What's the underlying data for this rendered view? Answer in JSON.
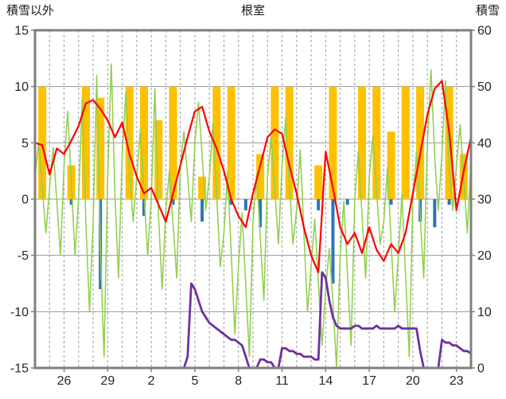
{
  "header": {
    "left_axis_title": "積雪以外",
    "title": "根室",
    "right_axis_title": "積雪"
  },
  "chart_data": {
    "type": "line",
    "title": "根室",
    "left_axis": {
      "label": "積雪以外",
      "min": -15,
      "max": 15,
      "ticks": [
        15,
        10,
        5,
        0,
        -5,
        -10,
        -15
      ]
    },
    "right_axis": {
      "label": "積雪",
      "min": 0,
      "max": 60,
      "ticks": [
        60,
        50,
        40,
        30,
        20,
        10,
        0
      ]
    },
    "x_axis": {
      "total_days": 30,
      "tick_days": [
        2,
        5,
        8,
        11,
        14,
        17,
        20,
        23,
        26,
        29
      ],
      "tick_labels": [
        "26",
        "29",
        "2",
        "5",
        "8",
        "11",
        "14",
        "17",
        "20",
        "23"
      ],
      "grid": "daily-dashed",
      "legend": "none"
    },
    "style": {
      "border_color": "#7f7f7f",
      "grid_color": "#9a9a9a",
      "background": "#ffffff",
      "tick_label_color": "#262626"
    },
    "series": {
      "orange_bars": {
        "type": "bar",
        "axis": "left",
        "direction": "up",
        "color": "#FFC000",
        "values": [
          10,
          0,
          3,
          10,
          9,
          0,
          10,
          10,
          7,
          10,
          0,
          2,
          10,
          10,
          0,
          4,
          10,
          10,
          0,
          3,
          10,
          0,
          10,
          10,
          6,
          10,
          10,
          0,
          10,
          4
        ]
      },
      "blue_bars": {
        "type": "bar",
        "axis": "left",
        "direction": "down",
        "color": "#2E75B6",
        "values": [
          0,
          0,
          0.5,
          0,
          8,
          0,
          0,
          1.5,
          0,
          0.5,
          0,
          2,
          0,
          0.5,
          1,
          2.5,
          0,
          0,
          0,
          1,
          7.5,
          0.5,
          0,
          0,
          0.5,
          0,
          2,
          2.5,
          0.5,
          0
        ]
      },
      "green_line": {
        "type": "line",
        "axis": "left",
        "color": "#92D050",
        "dx_days": 0.25,
        "values": [
          2,
          5,
          1,
          -3,
          1,
          4.6,
          -0.2,
          -5,
          3,
          7.8,
          1.4,
          -5,
          0,
          9,
          -2,
          -10,
          -2,
          11,
          -4.4,
          -14,
          2,
          12,
          0.2,
          -7,
          4,
          9.5,
          2.8,
          -2,
          2,
          6.2,
          0.6,
          -5,
          0,
          9.8,
          -1.6,
          -8,
          -1,
          2.6,
          -2.2,
          -7,
          3,
          6,
          2,
          -2,
          5,
          8.6,
          3.8,
          -1,
          2,
          6.8,
          0.4,
          -6,
          -3,
          2.4,
          -4.8,
          -12,
          -6,
          -1.2,
          -7.6,
          -14,
          -2,
          2.2,
          -3.4,
          -9,
          2,
          5.6,
          0.8,
          -4,
          3,
          7.2,
          1.6,
          -4,
          -1,
          4.4,
          -2.8,
          -10,
          -6,
          -1.8,
          -7.4,
          -13,
          -8,
          -4.4,
          -9.2,
          -15,
          -5,
          -0.2,
          -6.6,
          -13,
          0,
          4.2,
          -1.4,
          -7,
          2,
          5.6,
          0.8,
          -4,
          -2,
          2.8,
          -3.6,
          -10,
          -5,
          0.4,
          -6.8,
          -14,
          0,
          4.2,
          -1.4,
          -7,
          5,
          11.5,
          3.8,
          -1,
          4,
          10.5,
          3,
          -1,
          3,
          6.6,
          1.8,
          -3,
          3.5
        ]
      },
      "red_line": {
        "type": "line",
        "axis": "left",
        "color": "#FF0000",
        "dx_days": 0.5,
        "values": [
          5.0,
          4.8,
          2.2,
          4.5,
          4.0,
          5.2,
          6.5,
          8.5,
          8.8,
          8.0,
          7.0,
          5.5,
          6.8,
          4.0,
          2.0,
          0.5,
          1.0,
          -0.5,
          -2.0,
          0.5,
          3.0,
          5.5,
          7.8,
          8.2,
          6.0,
          4.5,
          2.5,
          0.0,
          -1.5,
          -2.5,
          0.5,
          3.0,
          5.5,
          6.2,
          5.8,
          3.0,
          0.5,
          -2.5,
          -5.0,
          -6.5,
          4.2,
          1.0,
          -2.5,
          -4.0,
          -3.0,
          -4.8,
          -2.5,
          -4.5,
          -5.5,
          -4.0,
          -4.8,
          -3.0,
          0.5,
          4.0,
          7.5,
          9.8,
          10.5,
          6.0,
          -1.0,
          2.5,
          5.5
        ]
      },
      "purple_line": {
        "type": "line",
        "axis": "right",
        "color": "#7030A0",
        "dx_days": 0.25,
        "values": [
          0,
          0,
          0,
          0,
          0,
          0,
          0,
          0,
          0,
          0,
          0,
          0,
          0,
          0,
          0,
          0,
          0,
          0,
          0,
          0,
          0,
          0,
          0,
          0,
          0,
          0,
          0,
          0,
          0,
          0,
          0,
          0,
          0,
          0,
          0,
          0,
          0,
          0,
          0,
          0,
          0,
          0,
          2,
          15,
          14,
          12,
          10,
          9,
          8,
          7.5,
          7,
          6.5,
          6,
          5.5,
          5,
          5,
          4.5,
          4,
          2,
          0,
          0,
          0,
          1.5,
          1.5,
          1,
          1,
          0,
          0,
          3.5,
          3.5,
          3,
          3,
          2.5,
          2.5,
          2,
          2,
          2,
          1.5,
          1.5,
          17,
          16,
          12,
          9,
          7.5,
          7,
          7,
          7,
          7,
          7.5,
          7.5,
          7,
          7,
          7,
          7,
          7.5,
          7,
          7,
          7,
          7,
          7,
          7.5,
          7,
          7,
          7,
          7,
          7,
          3,
          0,
          0,
          0,
          0,
          0,
          5,
          4.5,
          4.5,
          4,
          4,
          3.5,
          3,
          3,
          2.5
        ]
      }
    }
  }
}
